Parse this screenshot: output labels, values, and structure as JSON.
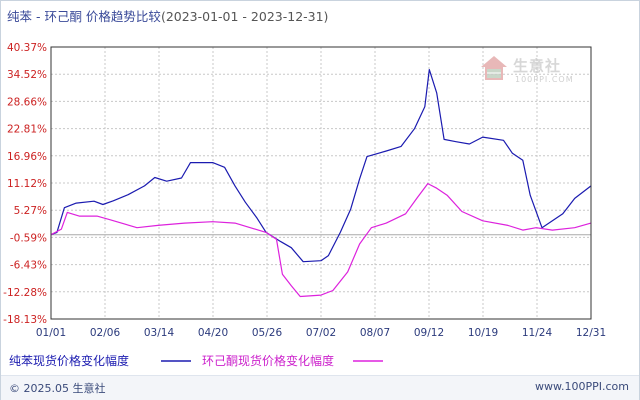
{
  "header": {
    "title": "纯苯 - 环己酮 价格趋势比较",
    "date_range": "(2023-01-01 - 2023-12-31)"
  },
  "watermark": {
    "brand": "生意社",
    "site": "100PPI.COM"
  },
  "legend": {
    "series_1": "纯苯现货价格变化幅度",
    "series_2": "环己酮现货价格变化幅度"
  },
  "footer": {
    "copyright": "© 2025.05 生意社",
    "url": "www.100PPI.com"
  },
  "colors": {
    "series_1": "#1b1bb0",
    "series_2": "#dd22dd",
    "ytick": "#cc2222",
    "xtick": "#2b3a7c",
    "grid": "#c8c8c8",
    "baseline": "#aaaaaa"
  },
  "chart_data": {
    "type": "line",
    "x_ticks": [
      "01/01",
      "02/06",
      "03/14",
      "04/20",
      "05/26",
      "07/02",
      "08/07",
      "09/12",
      "10/19",
      "11/24",
      "12/31"
    ],
    "y_ticks": [
      "40.37%",
      "34.52%",
      "28.66%",
      "22.81%",
      "16.96%",
      "11.12%",
      "5.27%",
      "-0.59%",
      "-6.43%",
      "-12.28%",
      "-18.13%"
    ],
    "y_range": [
      -18.13,
      40.37
    ],
    "x_range": [
      "2023-01-01",
      "2023-12-31"
    ],
    "series": [
      {
        "name": "纯苯现货价格变化幅度",
        "points": [
          [
            "2023-01-01",
            0.0
          ],
          [
            "2023-01-05",
            0.5
          ],
          [
            "2023-01-10",
            5.8
          ],
          [
            "2023-01-18",
            6.8
          ],
          [
            "2023-01-30",
            7.2
          ],
          [
            "2023-02-05",
            6.5
          ],
          [
            "2023-02-12",
            7.3
          ],
          [
            "2023-02-22",
            8.6
          ],
          [
            "2023-03-05",
            10.5
          ],
          [
            "2023-03-12",
            12.3
          ],
          [
            "2023-03-20",
            11.5
          ],
          [
            "2023-03-30",
            12.2
          ],
          [
            "2023-04-05",
            15.5
          ],
          [
            "2023-04-20",
            15.5
          ],
          [
            "2023-04-28",
            14.5
          ],
          [
            "2023-05-05",
            10.5
          ],
          [
            "2023-05-12",
            7.0
          ],
          [
            "2023-05-20",
            3.5
          ],
          [
            "2023-05-26",
            0.5
          ],
          [
            "2023-06-05",
            -1.5
          ],
          [
            "2023-06-12",
            -2.8
          ],
          [
            "2023-06-20",
            -5.8
          ],
          [
            "2023-07-02",
            -5.6
          ],
          [
            "2023-07-07",
            -4.5
          ],
          [
            "2023-07-15",
            0.5
          ],
          [
            "2023-07-22",
            5.5
          ],
          [
            "2023-07-28",
            12.0
          ],
          [
            "2023-08-02",
            16.8
          ],
          [
            "2023-08-15",
            18.0
          ],
          [
            "2023-08-25",
            19.0
          ],
          [
            "2023-09-03",
            22.8
          ],
          [
            "2023-09-10",
            27.5
          ],
          [
            "2023-09-13",
            35.5
          ],
          [
            "2023-09-18",
            30.5
          ],
          [
            "2023-09-23",
            20.5
          ],
          [
            "2023-10-01",
            20.0
          ],
          [
            "2023-10-10",
            19.5
          ],
          [
            "2023-10-19",
            21.0
          ],
          [
            "2023-11-02",
            20.3
          ],
          [
            "2023-11-08",
            17.5
          ],
          [
            "2023-11-15",
            16.0
          ],
          [
            "2023-11-20",
            8.5
          ],
          [
            "2023-11-28",
            1.5
          ],
          [
            "2023-12-05",
            3.0
          ],
          [
            "2023-12-12",
            4.5
          ],
          [
            "2023-12-20",
            7.8
          ],
          [
            "2023-12-31",
            10.5
          ]
        ]
      },
      {
        "name": "环己酮现货价格变化幅度",
        "points": [
          [
            "2023-01-01",
            0.0
          ],
          [
            "2023-01-08",
            1.2
          ],
          [
            "2023-01-12",
            4.8
          ],
          [
            "2023-01-20",
            4.0
          ],
          [
            "2023-02-01",
            4.0
          ],
          [
            "2023-02-10",
            3.2
          ],
          [
            "2023-02-28",
            1.5
          ],
          [
            "2023-03-14",
            2.0
          ],
          [
            "2023-04-01",
            2.5
          ],
          [
            "2023-04-20",
            2.8
          ],
          [
            "2023-05-05",
            2.5
          ],
          [
            "2023-05-26",
            0.5
          ],
          [
            "2023-06-02",
            -1.0
          ],
          [
            "2023-06-06",
            -8.5
          ],
          [
            "2023-06-12",
            -11.0
          ],
          [
            "2023-06-18",
            -13.3
          ],
          [
            "2023-07-02",
            -13.0
          ],
          [
            "2023-07-10",
            -12.0
          ],
          [
            "2023-07-20",
            -8.0
          ],
          [
            "2023-07-28",
            -2.0
          ],
          [
            "2023-08-05",
            1.5
          ],
          [
            "2023-08-15",
            2.5
          ],
          [
            "2023-08-28",
            4.5
          ],
          [
            "2023-09-05",
            8.0
          ],
          [
            "2023-09-12",
            11.0
          ],
          [
            "2023-09-18",
            10.0
          ],
          [
            "2023-09-25",
            8.5
          ],
          [
            "2023-10-05",
            5.0
          ],
          [
            "2023-10-19",
            3.0
          ],
          [
            "2023-11-05",
            2.0
          ],
          [
            "2023-11-15",
            1.0
          ],
          [
            "2023-11-24",
            1.5
          ],
          [
            "2023-12-05",
            1.0
          ],
          [
            "2023-12-20",
            1.5
          ],
          [
            "2023-12-31",
            2.5
          ]
        ]
      }
    ]
  }
}
